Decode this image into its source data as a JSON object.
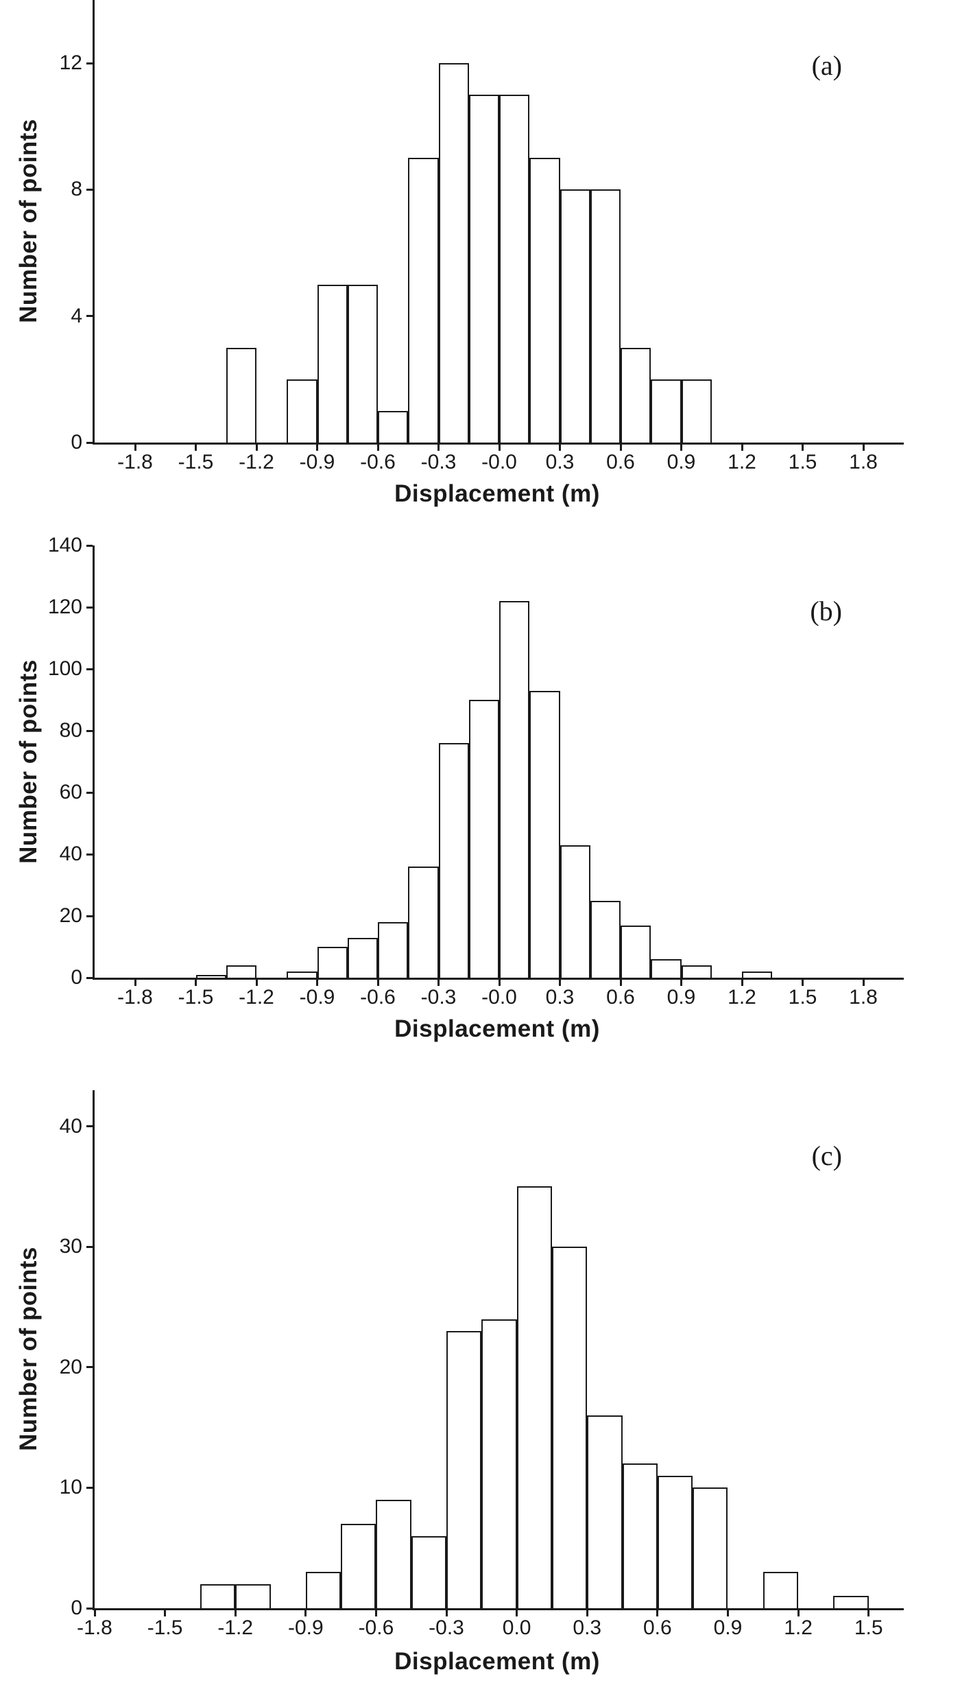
{
  "figure": {
    "ink": "#1a1a1a",
    "paper": "#ffffff",
    "bar_fill": "#ffffff"
  },
  "chart_data": [
    {
      "id": "a",
      "type": "bar",
      "panel_label": "(a)",
      "xlabel": "Displacement (m)",
      "ylabel": "Number of points",
      "grid": false,
      "legend": "none",
      "xlim": [
        -2.0,
        2.0
      ],
      "ylim": [
        0,
        14
      ],
      "bin_width": 0.15,
      "yticks": [
        {
          "value": 0,
          "label": "0"
        },
        {
          "value": 4,
          "label": "4"
        },
        {
          "value": 8,
          "label": "8"
        },
        {
          "value": 12,
          "label": "12"
        }
      ],
      "xticks": [
        {
          "value": -1.8,
          "label": "-1.8"
        },
        {
          "value": -1.5,
          "label": "-1.5"
        },
        {
          "value": -1.2,
          "label": "-1.2"
        },
        {
          "value": -0.9,
          "label": "-0.9"
        },
        {
          "value": -0.6,
          "label": "-0.6"
        },
        {
          "value": -0.3,
          "label": "-0.3"
        },
        {
          "value": 0.0,
          "label": "-0.0"
        },
        {
          "value": 0.3,
          "label": "0.3"
        },
        {
          "value": 0.6,
          "label": "0.6"
        },
        {
          "value": 0.9,
          "label": "0.9"
        },
        {
          "value": 1.2,
          "label": "1.2"
        },
        {
          "value": 1.5,
          "label": "1.5"
        },
        {
          "value": 1.8,
          "label": "1.8"
        }
      ],
      "bins": [
        {
          "x": -1.35,
          "count": 3
        },
        {
          "x": -1.05,
          "count": 2
        },
        {
          "x": -0.9,
          "count": 5
        },
        {
          "x": -0.75,
          "count": 5
        },
        {
          "x": -0.6,
          "count": 1
        },
        {
          "x": -0.45,
          "count": 9
        },
        {
          "x": -0.3,
          "count": 12
        },
        {
          "x": -0.15,
          "count": 11
        },
        {
          "x": 0.0,
          "count": 11
        },
        {
          "x": 0.15,
          "count": 9
        },
        {
          "x": 0.3,
          "count": 8
        },
        {
          "x": 0.45,
          "count": 8
        },
        {
          "x": 0.6,
          "count": 3
        },
        {
          "x": 0.75,
          "count": 2
        },
        {
          "x": 0.9,
          "count": 2
        }
      ]
    },
    {
      "id": "b",
      "type": "bar",
      "panel_label": "(b)",
      "xlabel": "Displacement (m)",
      "ylabel": "Number of points",
      "grid": false,
      "legend": "none",
      "xlim": [
        -2.0,
        2.0
      ],
      "ylim": [
        0,
        140
      ],
      "bin_width": 0.15,
      "yticks": [
        {
          "value": 0,
          "label": "0"
        },
        {
          "value": 20,
          "label": "20"
        },
        {
          "value": 40,
          "label": "40"
        },
        {
          "value": 60,
          "label": "60"
        },
        {
          "value": 80,
          "label": "80"
        },
        {
          "value": 100,
          "label": "100"
        },
        {
          "value": 120,
          "label": "120"
        },
        {
          "value": 140,
          "label": "140"
        }
      ],
      "xticks": [
        {
          "value": -1.8,
          "label": "-1.8"
        },
        {
          "value": -1.5,
          "label": "-1.5"
        },
        {
          "value": -1.2,
          "label": "-1.2"
        },
        {
          "value": -0.9,
          "label": "-0.9"
        },
        {
          "value": -0.6,
          "label": "-0.6"
        },
        {
          "value": -0.3,
          "label": "-0.3"
        },
        {
          "value": 0.0,
          "label": "-0.0"
        },
        {
          "value": 0.3,
          "label": "0.3"
        },
        {
          "value": 0.6,
          "label": "0.6"
        },
        {
          "value": 0.9,
          "label": "0.9"
        },
        {
          "value": 1.2,
          "label": "1.2"
        },
        {
          "value": 1.5,
          "label": "1.5"
        },
        {
          "value": 1.8,
          "label": "1.8"
        }
      ],
      "bins": [
        {
          "x": -1.5,
          "count": 1
        },
        {
          "x": -1.35,
          "count": 4
        },
        {
          "x": -1.05,
          "count": 2
        },
        {
          "x": -0.9,
          "count": 10
        },
        {
          "x": -0.75,
          "count": 13
        },
        {
          "x": -0.6,
          "count": 18
        },
        {
          "x": -0.45,
          "count": 36
        },
        {
          "x": -0.3,
          "count": 76
        },
        {
          "x": -0.15,
          "count": 90
        },
        {
          "x": 0.0,
          "count": 122
        },
        {
          "x": 0.15,
          "count": 93
        },
        {
          "x": 0.3,
          "count": 43
        },
        {
          "x": 0.45,
          "count": 25
        },
        {
          "x": 0.6,
          "count": 17
        },
        {
          "x": 0.75,
          "count": 6
        },
        {
          "x": 0.9,
          "count": 4
        },
        {
          "x": 1.2,
          "count": 2
        }
      ]
    },
    {
      "id": "c",
      "type": "bar",
      "panel_label": "(c)",
      "xlabel": "Displacement (m)",
      "ylabel": "Number of points",
      "grid": false,
      "legend": "none",
      "xlim": [
        -1.8,
        1.65
      ],
      "ylim": [
        0,
        43
      ],
      "bin_width": 0.15,
      "yticks": [
        {
          "value": 0,
          "label": "0"
        },
        {
          "value": 10,
          "label": "10"
        },
        {
          "value": 20,
          "label": "20"
        },
        {
          "value": 30,
          "label": "30"
        },
        {
          "value": 40,
          "label": "40"
        }
      ],
      "xticks": [
        {
          "value": -1.8,
          "label": "-1.8"
        },
        {
          "value": -1.5,
          "label": "-1.5"
        },
        {
          "value": -1.2,
          "label": "-1.2"
        },
        {
          "value": -0.9,
          "label": "-0.9"
        },
        {
          "value": -0.6,
          "label": "-0.6"
        },
        {
          "value": -0.3,
          "label": "-0.3"
        },
        {
          "value": 0.0,
          "label": "0.0"
        },
        {
          "value": 0.3,
          "label": "0.3"
        },
        {
          "value": 0.6,
          "label": "0.6"
        },
        {
          "value": 0.9,
          "label": "0.9"
        },
        {
          "value": 1.2,
          "label": "1.2"
        },
        {
          "value": 1.5,
          "label": "1.5"
        }
      ],
      "bins": [
        {
          "x": -1.35,
          "count": 2
        },
        {
          "x": -1.2,
          "count": 2
        },
        {
          "x": -0.9,
          "count": 3
        },
        {
          "x": -0.75,
          "count": 7
        },
        {
          "x": -0.6,
          "count": 9
        },
        {
          "x": -0.45,
          "count": 6
        },
        {
          "x": -0.3,
          "count": 23
        },
        {
          "x": -0.15,
          "count": 24
        },
        {
          "x": 0.0,
          "count": 35
        },
        {
          "x": 0.15,
          "count": 30
        },
        {
          "x": 0.3,
          "count": 16
        },
        {
          "x": 0.45,
          "count": 12
        },
        {
          "x": 0.6,
          "count": 11
        },
        {
          "x": 0.75,
          "count": 10
        },
        {
          "x": 1.05,
          "count": 3
        },
        {
          "x": 1.35,
          "count": 1
        }
      ]
    }
  ]
}
